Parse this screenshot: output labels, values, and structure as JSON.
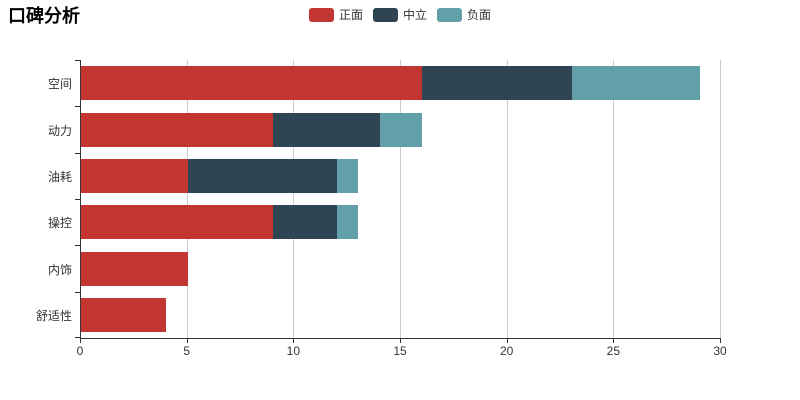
{
  "title": "口碑分析",
  "colors": {
    "positive": "#c23531",
    "neutral": "#2f4554",
    "negative": "#61a0a8",
    "axis_line": "#333333",
    "gridline": "#cccccc",
    "tick_label": "#333333",
    "title_text": "#000000",
    "background": "#ffffff"
  },
  "chart_data": {
    "type": "bar",
    "orientation": "horizontal",
    "stacked": true,
    "title": "口碑分析",
    "categories": [
      "空间",
      "动力",
      "油耗",
      "操控",
      "内饰",
      "舒适性"
    ],
    "series": [
      {
        "name": "正面",
        "color": "#c23531",
        "values": [
          16,
          9,
          5,
          9,
          5,
          4
        ]
      },
      {
        "name": "中立",
        "color": "#2f4554",
        "values": [
          7,
          5,
          7,
          3,
          0,
          0
        ]
      },
      {
        "name": "负面",
        "color": "#61a0a8",
        "values": [
          6,
          2,
          1,
          1,
          0,
          0
        ]
      }
    ],
    "xlabel": "",
    "ylabel": "",
    "xlim": [
      0,
      30
    ],
    "x_ticks": [
      0,
      5,
      10,
      15,
      20,
      25,
      30
    ],
    "grid": true,
    "legend_position": "top-center",
    "legend_entries": [
      "正面",
      "中立",
      "负面"
    ]
  }
}
